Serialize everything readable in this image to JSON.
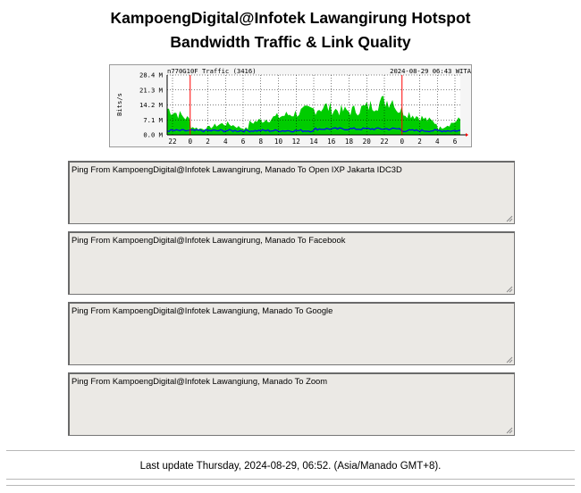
{
  "header": {
    "title_line1": "KampoengDigital@Infotek Lawangirung Hotspot",
    "title_line2": "Bandwidth Traffic & Link Quality"
  },
  "traffic_graph": {
    "interface_label": "n770G10F Traffic (3416)",
    "timestamp": "2024-08-29 06:43 WITA",
    "y_axis_label": "Bits/s",
    "y_ticks": [
      "28.4 M",
      "21.3 M",
      "14.2 M",
      "7.1 M",
      "0.0 M"
    ],
    "x_ticks": [
      "22",
      "0",
      "2",
      "4",
      "6",
      "8",
      "10",
      "12",
      "14",
      "16",
      "18",
      "20",
      "22",
      "0",
      "2",
      "4",
      "6"
    ],
    "colors": {
      "inbound": "#00cc00",
      "outbound": "#0000ff",
      "day_marker": "#ff0000",
      "grid": "#000000"
    }
  },
  "ping_panels": [
    {
      "label": "Ping From KampoengDigital@Infotek Lawangirung, Manado To Open IXP Jakarta IDC3D"
    },
    {
      "label": "Ping From KampoengDigital@Infotek Lawangirung, Manado To Facebook"
    },
    {
      "label": "Ping From KampoengDigital@Infotek Lawangiung, Manado To Google"
    },
    {
      "label": "Ping From KampoengDigital@Infotek Lawangiung, Manado To Zoom"
    }
  ],
  "footer": {
    "last_update": "Last update Thursday, 2024-08-29, 06:52. (Asia/Manado GMT+8)."
  }
}
